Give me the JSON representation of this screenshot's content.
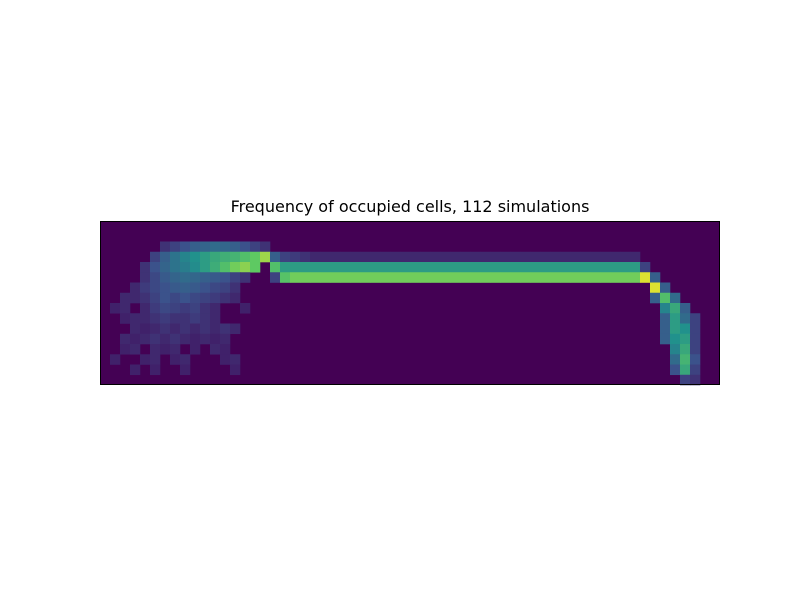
{
  "chart_data": {
    "type": "heatmap",
    "title": "Frequency of occupied cells, 112 simulations",
    "xlabel": "",
    "ylabel": "",
    "axes_ticks": false,
    "colormap": "viridis",
    "vmin": 0,
    "vmax": 1,
    "colormap_stops": [
      "#440154",
      "#3b528b",
      "#21918c",
      "#5ec962",
      "#fde725"
    ],
    "grid_cols": 62,
    "grid_rows": 16,
    "occupied_cells": [
      [
        6,
        2,
        0.15
      ],
      [
        7,
        2,
        0.2
      ],
      [
        8,
        2,
        0.25
      ],
      [
        9,
        2,
        0.3
      ],
      [
        10,
        2,
        0.32
      ],
      [
        11,
        2,
        0.35
      ],
      [
        12,
        2,
        0.33
      ],
      [
        13,
        2,
        0.3
      ],
      [
        14,
        2,
        0.25
      ],
      [
        15,
        2,
        0.2
      ],
      [
        16,
        2,
        0.15
      ],
      [
        5,
        3,
        0.2
      ],
      [
        6,
        3,
        0.3
      ],
      [
        7,
        3,
        0.38
      ],
      [
        8,
        3,
        0.45
      ],
      [
        9,
        3,
        0.5
      ],
      [
        10,
        3,
        0.55
      ],
      [
        11,
        3,
        0.6
      ],
      [
        12,
        3,
        0.63
      ],
      [
        13,
        3,
        0.65
      ],
      [
        14,
        3,
        0.7
      ],
      [
        15,
        3,
        0.75
      ],
      [
        16,
        3,
        0.85
      ],
      [
        17,
        3,
        0.3
      ],
      [
        18,
        3,
        0.2
      ],
      [
        19,
        3,
        0.18
      ],
      [
        20,
        3,
        0.15
      ],
      [
        21,
        3,
        0.12
      ],
      [
        22,
        3,
        0.12
      ],
      [
        23,
        3,
        0.12
      ],
      [
        24,
        3,
        0.12
      ],
      [
        25,
        3,
        0.12
      ],
      [
        26,
        3,
        0.12
      ],
      [
        27,
        3,
        0.12
      ],
      [
        28,
        3,
        0.12
      ],
      [
        29,
        3,
        0.12
      ],
      [
        30,
        3,
        0.12
      ],
      [
        31,
        3,
        0.12
      ],
      [
        32,
        3,
        0.12
      ],
      [
        33,
        3,
        0.12
      ],
      [
        34,
        3,
        0.12
      ],
      [
        35,
        3,
        0.12
      ],
      [
        36,
        3,
        0.12
      ],
      [
        37,
        3,
        0.12
      ],
      [
        38,
        3,
        0.12
      ],
      [
        39,
        3,
        0.12
      ],
      [
        40,
        3,
        0.12
      ],
      [
        41,
        3,
        0.12
      ],
      [
        42,
        3,
        0.12
      ],
      [
        43,
        3,
        0.12
      ],
      [
        44,
        3,
        0.12
      ],
      [
        45,
        3,
        0.12
      ],
      [
        46,
        3,
        0.12
      ],
      [
        47,
        3,
        0.12
      ],
      [
        48,
        3,
        0.12
      ],
      [
        49,
        3,
        0.12
      ],
      [
        50,
        3,
        0.12
      ],
      [
        51,
        3,
        0.12
      ],
      [
        52,
        3,
        0.12
      ],
      [
        53,
        3,
        0.12
      ],
      [
        4,
        4,
        0.15
      ],
      [
        5,
        4,
        0.25
      ],
      [
        6,
        4,
        0.32
      ],
      [
        7,
        4,
        0.38
      ],
      [
        8,
        4,
        0.42
      ],
      [
        9,
        4,
        0.48
      ],
      [
        10,
        4,
        0.55
      ],
      [
        11,
        4,
        0.62
      ],
      [
        12,
        4,
        0.7
      ],
      [
        13,
        4,
        0.78
      ],
      [
        14,
        4,
        0.82
      ],
      [
        15,
        4,
        0.75
      ],
      [
        17,
        4,
        0.7
      ],
      [
        18,
        4,
        0.55
      ],
      [
        19,
        4,
        0.55
      ],
      [
        20,
        4,
        0.55
      ],
      [
        21,
        4,
        0.55
      ],
      [
        22,
        4,
        0.55
      ],
      [
        23,
        4,
        0.55
      ],
      [
        24,
        4,
        0.55
      ],
      [
        25,
        4,
        0.55
      ],
      [
        26,
        4,
        0.55
      ],
      [
        27,
        4,
        0.55
      ],
      [
        28,
        4,
        0.55
      ],
      [
        29,
        4,
        0.55
      ],
      [
        30,
        4,
        0.55
      ],
      [
        31,
        4,
        0.55
      ],
      [
        32,
        4,
        0.55
      ],
      [
        33,
        4,
        0.55
      ],
      [
        34,
        4,
        0.55
      ],
      [
        35,
        4,
        0.55
      ],
      [
        36,
        4,
        0.55
      ],
      [
        37,
        4,
        0.55
      ],
      [
        38,
        4,
        0.55
      ],
      [
        39,
        4,
        0.55
      ],
      [
        40,
        4,
        0.55
      ],
      [
        41,
        4,
        0.55
      ],
      [
        42,
        4,
        0.55
      ],
      [
        43,
        4,
        0.55
      ],
      [
        44,
        4,
        0.55
      ],
      [
        45,
        4,
        0.55
      ],
      [
        46,
        4,
        0.55
      ],
      [
        47,
        4,
        0.55
      ],
      [
        48,
        4,
        0.55
      ],
      [
        49,
        4,
        0.55
      ],
      [
        50,
        4,
        0.55
      ],
      [
        51,
        4,
        0.55
      ],
      [
        52,
        4,
        0.55
      ],
      [
        53,
        4,
        0.55
      ],
      [
        54,
        4,
        0.2
      ],
      [
        4,
        5,
        0.15
      ],
      [
        5,
        5,
        0.22
      ],
      [
        6,
        5,
        0.28
      ],
      [
        7,
        5,
        0.32
      ],
      [
        8,
        5,
        0.35
      ],
      [
        9,
        5,
        0.33
      ],
      [
        10,
        5,
        0.3
      ],
      [
        11,
        5,
        0.28
      ],
      [
        12,
        5,
        0.25
      ],
      [
        13,
        5,
        0.2
      ],
      [
        14,
        5,
        0.15
      ],
      [
        17,
        5,
        0.2
      ],
      [
        18,
        5,
        0.72
      ],
      [
        19,
        5,
        0.78
      ],
      [
        20,
        5,
        0.78
      ],
      [
        21,
        5,
        0.78
      ],
      [
        22,
        5,
        0.78
      ],
      [
        23,
        5,
        0.78
      ],
      [
        24,
        5,
        0.78
      ],
      [
        25,
        5,
        0.78
      ],
      [
        26,
        5,
        0.78
      ],
      [
        27,
        5,
        0.78
      ],
      [
        28,
        5,
        0.78
      ],
      [
        29,
        5,
        0.78
      ],
      [
        30,
        5,
        0.78
      ],
      [
        31,
        5,
        0.78
      ],
      [
        32,
        5,
        0.78
      ],
      [
        33,
        5,
        0.78
      ],
      [
        34,
        5,
        0.78
      ],
      [
        35,
        5,
        0.78
      ],
      [
        36,
        5,
        0.78
      ],
      [
        37,
        5,
        0.78
      ],
      [
        38,
        5,
        0.78
      ],
      [
        39,
        5,
        0.78
      ],
      [
        40,
        5,
        0.78
      ],
      [
        41,
        5,
        0.78
      ],
      [
        42,
        5,
        0.78
      ],
      [
        43,
        5,
        0.78
      ],
      [
        44,
        5,
        0.78
      ],
      [
        45,
        5,
        0.78
      ],
      [
        46,
        5,
        0.78
      ],
      [
        47,
        5,
        0.78
      ],
      [
        48,
        5,
        0.78
      ],
      [
        49,
        5,
        0.78
      ],
      [
        50,
        5,
        0.78
      ],
      [
        51,
        5,
        0.78
      ],
      [
        52,
        5,
        0.78
      ],
      [
        53,
        5,
        0.78
      ],
      [
        54,
        5,
        0.95
      ],
      [
        55,
        5,
        0.3
      ],
      [
        3,
        6,
        0.12
      ],
      [
        4,
        6,
        0.18
      ],
      [
        5,
        6,
        0.22
      ],
      [
        6,
        6,
        0.25
      ],
      [
        7,
        6,
        0.28
      ],
      [
        8,
        6,
        0.3
      ],
      [
        9,
        6,
        0.28
      ],
      [
        10,
        6,
        0.25
      ],
      [
        11,
        6,
        0.22
      ],
      [
        12,
        6,
        0.2
      ],
      [
        13,
        6,
        0.15
      ],
      [
        55,
        6,
        0.95
      ],
      [
        56,
        6,
        0.3
      ],
      [
        2,
        7,
        0.12
      ],
      [
        3,
        7,
        0.12
      ],
      [
        4,
        7,
        0.15
      ],
      [
        5,
        7,
        0.2
      ],
      [
        6,
        7,
        0.25
      ],
      [
        7,
        7,
        0.22
      ],
      [
        8,
        7,
        0.25
      ],
      [
        9,
        7,
        0.22
      ],
      [
        10,
        7,
        0.2
      ],
      [
        11,
        7,
        0.18
      ],
      [
        12,
        7,
        0.15
      ],
      [
        13,
        7,
        0.12
      ],
      [
        55,
        7,
        0.3
      ],
      [
        56,
        7,
        0.7
      ],
      [
        57,
        7,
        0.35
      ],
      [
        1,
        8,
        0.1
      ],
      [
        2,
        8,
        0.12
      ],
      [
        4,
        8,
        0.12
      ],
      [
        5,
        8,
        0.18
      ],
      [
        6,
        8,
        0.22
      ],
      [
        7,
        8,
        0.2
      ],
      [
        8,
        8,
        0.18
      ],
      [
        9,
        8,
        0.2
      ],
      [
        10,
        8,
        0.15
      ],
      [
        11,
        8,
        0.12
      ],
      [
        14,
        8,
        0.1
      ],
      [
        56,
        8,
        0.45
      ],
      [
        57,
        8,
        0.6
      ],
      [
        58,
        8,
        0.3
      ],
      [
        2,
        9,
        0.1
      ],
      [
        3,
        9,
        0.12
      ],
      [
        4,
        9,
        0.12
      ],
      [
        5,
        9,
        0.15
      ],
      [
        6,
        9,
        0.18
      ],
      [
        7,
        9,
        0.15
      ],
      [
        8,
        9,
        0.15
      ],
      [
        9,
        9,
        0.18
      ],
      [
        10,
        9,
        0.15
      ],
      [
        11,
        9,
        0.12
      ],
      [
        56,
        9,
        0.3
      ],
      [
        57,
        9,
        0.55
      ],
      [
        58,
        9,
        0.35
      ],
      [
        59,
        9,
        0.2
      ],
      [
        3,
        10,
        0.12
      ],
      [
        4,
        10,
        0.1
      ],
      [
        5,
        10,
        0.12
      ],
      [
        6,
        10,
        0.15
      ],
      [
        7,
        10,
        0.12
      ],
      [
        8,
        10,
        0.15
      ],
      [
        9,
        10,
        0.12
      ],
      [
        10,
        10,
        0.15
      ],
      [
        11,
        10,
        0.12
      ],
      [
        12,
        10,
        0.15
      ],
      [
        13,
        10,
        0.12
      ],
      [
        56,
        10,
        0.3
      ],
      [
        57,
        10,
        0.55
      ],
      [
        58,
        10,
        0.5
      ],
      [
        59,
        10,
        0.2
      ],
      [
        2,
        11,
        0.12
      ],
      [
        3,
        11,
        0.1
      ],
      [
        4,
        11,
        0.12
      ],
      [
        5,
        11,
        0.15
      ],
      [
        6,
        11,
        0.12
      ],
      [
        7,
        11,
        0.15
      ],
      [
        8,
        11,
        0.12
      ],
      [
        9,
        11,
        0.1
      ],
      [
        10,
        11,
        0.12
      ],
      [
        11,
        11,
        0.1
      ],
      [
        12,
        11,
        0.12
      ],
      [
        56,
        11,
        0.3
      ],
      [
        57,
        11,
        0.5
      ],
      [
        58,
        11,
        0.55
      ],
      [
        59,
        11,
        0.2
      ],
      [
        2,
        12,
        0.1
      ],
      [
        3,
        12,
        0.12
      ],
      [
        5,
        12,
        0.12
      ],
      [
        6,
        12,
        0.1
      ],
      [
        7,
        12,
        0.12
      ],
      [
        9,
        12,
        0.1
      ],
      [
        11,
        12,
        0.12
      ],
      [
        12,
        12,
        0.1
      ],
      [
        57,
        12,
        0.45
      ],
      [
        58,
        12,
        0.6
      ],
      [
        59,
        12,
        0.2
      ],
      [
        1,
        13,
        0.1
      ],
      [
        4,
        13,
        0.1
      ],
      [
        5,
        13,
        0.12
      ],
      [
        7,
        13,
        0.1
      ],
      [
        8,
        13,
        0.12
      ],
      [
        12,
        13,
        0.1
      ],
      [
        13,
        13,
        0.12
      ],
      [
        57,
        13,
        0.35
      ],
      [
        58,
        13,
        0.65
      ],
      [
        59,
        13,
        0.25
      ],
      [
        3,
        14,
        0.1
      ],
      [
        5,
        14,
        0.1
      ],
      [
        8,
        14,
        0.1
      ],
      [
        13,
        14,
        0.1
      ],
      [
        57,
        14,
        0.25
      ],
      [
        58,
        14,
        0.6
      ],
      [
        59,
        14,
        0.2
      ],
      [
        58,
        15,
        0.2
      ],
      [
        59,
        15,
        0.15
      ]
    ]
  }
}
